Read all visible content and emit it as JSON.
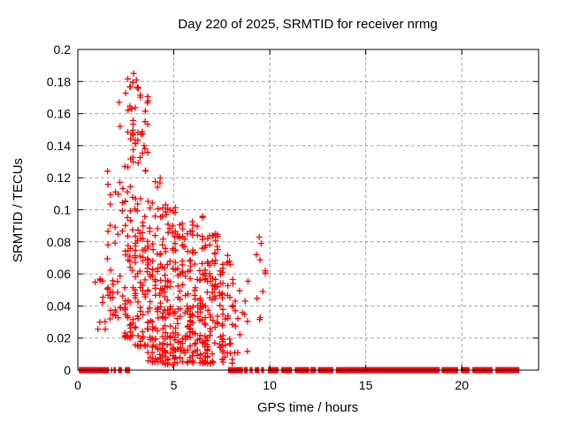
{
  "title": "Day 220 of 2025, SRMTID for receiver nrmg",
  "colors": {
    "marker": "#ff0000",
    "zero_band": "#ff0000",
    "axis": "#000000",
    "grid": "#9e9e9e",
    "background": "#ffffff",
    "text": "#000000"
  },
  "chart_data": {
    "type": "scatter",
    "title": "Day 220 of 2025, SRMTID for receiver nrmg",
    "xlabel": "GPS time / hours",
    "ylabel": "SRMTID / TECUs",
    "xlim": [
      0,
      24
    ],
    "ylim": [
      0,
      0.2
    ],
    "xticks": [
      0,
      5,
      10,
      15,
      20
    ],
    "xtick_labels": [
      "0",
      "5",
      "10",
      "15",
      "20"
    ],
    "yticks": [
      0,
      0.02,
      0.04,
      0.06,
      0.08,
      0.1,
      0.12,
      0.14,
      0.16,
      0.18,
      0.2
    ],
    "ytick_labels": [
      "0",
      "0.02",
      "0.04",
      "0.06",
      "0.08",
      "0.1",
      "0.12",
      "0.14",
      "0.16",
      "0.18",
      "0.2"
    ],
    "grid": true,
    "legend": "none",
    "marker_style": "plus",
    "series_color": "#ff0000",
    "description": "Dense scatter of red plus markers between ~1 and ~9.8 hours, peak amplitude ~0.185 TECUs near hour 2.9; a near-continuous band of zero values runs from hour 0 to ~23 with gaps between ~2.7 and ~7.8 hours where the active scatter occurs.",
    "zero_band_segments_hours": [
      [
        0.05,
        1.62
      ],
      [
        1.73,
        1.8
      ],
      [
        1.86,
        1.98
      ],
      [
        2.1,
        2.3
      ],
      [
        2.45,
        2.72
      ],
      [
        7.82,
        8.6
      ],
      [
        8.65,
        8.85
      ],
      [
        8.95,
        9.1
      ],
      [
        9.22,
        9.45
      ],
      [
        9.55,
        9.7
      ],
      [
        9.9,
        10.45
      ],
      [
        10.6,
        11.15
      ],
      [
        11.3,
        12.05
      ],
      [
        12.1,
        12.4
      ],
      [
        12.5,
        13.3
      ],
      [
        13.45,
        18.85
      ],
      [
        18.95,
        19.8
      ],
      [
        19.95,
        20.4
      ],
      [
        20.55,
        21.6
      ],
      [
        21.75,
        23.0
      ]
    ],
    "points_are_approximate": true,
    "seed": 42,
    "x_quantize_hours": 0.13,
    "clusters": [
      {
        "x": [
          0.95,
          1.55
        ],
        "y": [
          0.025,
          0.062
        ],
        "n": 10,
        "p": 1.2
      },
      {
        "x": [
          1.5,
          2.3
        ],
        "y": [
          0.03,
          0.125
        ],
        "n": 40,
        "p": 1.5
      },
      {
        "x": [
          2.35,
          3.1
        ],
        "y": [
          0.02,
          0.186
        ],
        "n": 90,
        "p": 1.7
      },
      {
        "x": [
          3.0,
          3.65
        ],
        "y": [
          0.015,
          0.178
        ],
        "n": 80,
        "p": 1.9
      },
      {
        "x": [
          3.6,
          4.4
        ],
        "y": [
          0.005,
          0.122
        ],
        "n": 90,
        "p": 1.6
      },
      {
        "x": [
          4.35,
          5.1
        ],
        "y": [
          0.003,
          0.105
        ],
        "n": 95,
        "p": 1.6
      },
      {
        "x": [
          5.05,
          5.9
        ],
        "y": [
          0.004,
          0.092
        ],
        "n": 95,
        "p": 1.4
      },
      {
        "x": [
          5.85,
          6.7
        ],
        "y": [
          0.004,
          0.097
        ],
        "n": 90,
        "p": 1.4
      },
      {
        "x": [
          6.65,
          7.5
        ],
        "y": [
          0.004,
          0.086
        ],
        "n": 80,
        "p": 1.4
      },
      {
        "x": [
          7.45,
          8.1
        ],
        "y": [
          0.004,
          0.075
        ],
        "n": 45,
        "p": 1.5
      },
      {
        "x": [
          8.1,
          9.0
        ],
        "y": [
          0.008,
          0.062
        ],
        "n": 14,
        "p": 1.2
      },
      {
        "x": [
          9.3,
          9.8
        ],
        "y": [
          0.028,
          0.085
        ],
        "n": 7,
        "p": 1.0
      }
    ],
    "notable_points": [
      {
        "x": 2.15,
        "y": 0.167
      },
      {
        "x": 2.2,
        "y": 0.152
      },
      {
        "x": 2.8,
        "y": 0.163
      },
      {
        "x": 2.9,
        "y": 0.185
      },
      {
        "x": 3.05,
        "y": 0.181
      },
      {
        "x": 3.15,
        "y": 0.176
      },
      {
        "x": 3.3,
        "y": 0.147
      },
      {
        "x": 3.45,
        "y": 0.14
      },
      {
        "x": 4.6,
        "y": 0.097
      },
      {
        "x": 6.5,
        "y": 0.096
      },
      {
        "x": 9.45,
        "y": 0.083
      },
      {
        "x": 9.55,
        "y": 0.079
      },
      {
        "x": 9.3,
        "y": 0.072
      }
    ]
  }
}
